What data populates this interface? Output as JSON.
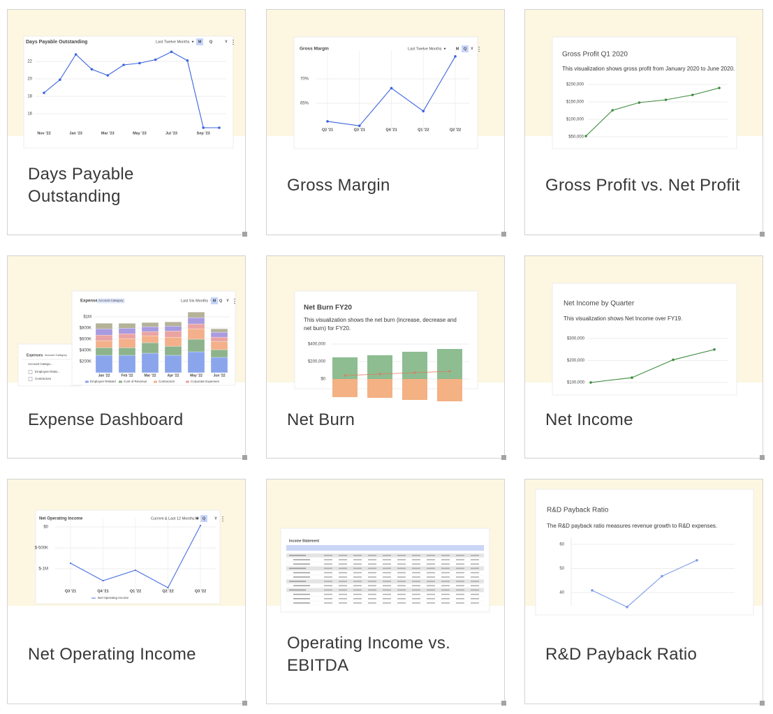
{
  "cards": [
    {
      "title": "Days Payable Outstanding",
      "thumbnail": {
        "chart_data": {
          "type": "line",
          "title": "Days Payable Outstanding",
          "range_label": "Last Twelve Months",
          "periods": [
            "M",
            "Q",
            "Y"
          ],
          "selected_period": "M",
          "categories": [
            "Nov '22",
            null,
            "Jan '23",
            null,
            "Mar '23",
            null,
            "May '23",
            null,
            "Jul '23",
            null,
            "Sep '23",
            null
          ],
          "values": [
            18.4,
            19.9,
            22.8,
            21.1,
            20.4,
            21.6,
            21.8,
            22.2,
            23.1,
            22.1,
            14.4,
            14.4
          ],
          "color": "#3b63e0",
          "ylim": [
            14,
            24
          ],
          "yticks": [
            16,
            18,
            20,
            22
          ],
          "grid": true
        }
      }
    },
    {
      "title": "Gross Margin",
      "thumbnail": {
        "chart_data": {
          "type": "line",
          "title": "Gross Margin",
          "range_label": "Last Twelve Months",
          "periods": [
            "M",
            "Q",
            "Y"
          ],
          "selected_period": "Q",
          "categories": [
            "Q2 '21",
            "Q3 '21",
            "Q4 '21",
            "Q1 '22",
            "Q2 '22"
          ],
          "values": [
            61.3,
            60.4,
            68.1,
            63.4,
            74.6
          ],
          "color": "#3b63e0",
          "ylim": [
            60,
            75
          ],
          "yticks": [
            {
              "value": 65,
              "label": "65%"
            },
            {
              "value": 70,
              "label": "70%"
            }
          ],
          "grid": true
        }
      }
    },
    {
      "title": "Gross Profit vs. Net Profit",
      "thumbnail": {
        "chart_data": {
          "type": "line",
          "title": "Gross Profit Q1 2020",
          "subtitle": "This visualization shows gross profit from January 2020 to June 2020.",
          "values": [
            52000,
            126000,
            148000,
            156000,
            170000,
            190000
          ],
          "color": "#3d8b3d",
          "ylim": [
            50000,
            200000
          ],
          "yticks": [
            {
              "value": 50000,
              "label": "$50,000"
            },
            {
              "value": 100000,
              "label": "$100,000"
            },
            {
              "value": 150000,
              "label": "$150,000"
            },
            {
              "value": 200000,
              "label": "$200,000"
            }
          ],
          "grid": true
        }
      }
    },
    {
      "title": "Expense Dashboard",
      "thumbnail": {
        "side_table": {
          "title": "Expenses",
          "filter": "Account Category",
          "header": "Account Catego...",
          "rows": [
            "Employee Relat...",
            "Contractors"
          ]
        },
        "chart_data": {
          "type": "stacked_bar",
          "title": "Expenses",
          "filter": "Account Category",
          "range_label": "Last Six Months",
          "periods": [
            "M",
            "Q",
            "Y"
          ],
          "selected_period": "M",
          "categories": [
            "Jan '22",
            "Feb '22",
            "Mar '22",
            "Apr '22",
            "May '22",
            "Jun '22"
          ],
          "series": [
            {
              "name": "Employee Related",
              "color": "#8aa5ec",
              "values": [
                312000,
                312000,
                350000,
                312000,
                375000,
                275000
              ]
            },
            {
              "name": "Cost of Revenue",
              "color": "#8db38c",
              "values": [
                137000,
                137000,
                187000,
                162000,
                225000,
                137000
              ]
            },
            {
              "name": "Contractors",
              "color": "#f4b08a",
              "values": [
                125000,
                162000,
                125000,
                162000,
                187000,
                150000
              ]
            },
            {
              "name": "Corporate Expenses",
              "color": "#eaa3a3",
              "values": [
                100000,
                87000,
                75000,
                112000,
                87000,
                75000
              ]
            },
            {
              "color": "#a89be0",
              "values": [
                112000,
                100000,
                87000,
                87000,
                112000,
                87000
              ]
            },
            {
              "color": "#b5b29a",
              "values": [
                100000,
                87000,
                75000,
                75000,
                100000,
                62000
              ]
            }
          ],
          "ylim": [
            0,
            1000000
          ],
          "yticks": [
            {
              "value": 200000,
              "label": "$200K"
            },
            {
              "value": 400000,
              "label": "$400K"
            },
            {
              "value": 600000,
              "label": "$600K"
            },
            {
              "value": 800000,
              "label": "$800K"
            },
            {
              "value": 1000000,
              "label": "$1M"
            }
          ],
          "grid": true
        }
      }
    },
    {
      "title": "Net Burn",
      "thumbnail": {
        "chart_data": {
          "type": "bar",
          "title": "Net Burn FY20",
          "subtitle": "This visualization shows the net burn (increase, decrease and net burn) for FY20.",
          "series": [
            {
              "color": "#8dbd91",
              "values": [
                248000,
                272000,
                312000,
                344000
              ]
            },
            {
              "color": "#f3b184",
              "values": [
                -208000,
                -216000,
                -240000,
                -256000
              ]
            },
            {
              "type": "line",
              "color": "#e07b5b",
              "values": [
                40000,
                56000,
                72000,
                88000
              ]
            }
          ],
          "ylim": [
            -300000,
            400000
          ],
          "yticks": [
            {
              "value": 0,
              "label": "$0"
            },
            {
              "value": 200000,
              "label": "$200,000"
            },
            {
              "value": 400000,
              "label": "$400,000"
            }
          ],
          "grid": true
        }
      }
    },
    {
      "title": "Net Income",
      "thumbnail": {
        "chart_data": {
          "type": "line",
          "title": "Net Income by Quarter",
          "subtitle": "This visualization shows Net Income over FY19.",
          "values": [
            100000,
            122000,
            203000,
            250000
          ],
          "color": "#3d8b3d",
          "ylim": [
            100000,
            300000
          ],
          "yticks": [
            {
              "value": 100000,
              "label": "$100,000"
            },
            {
              "value": 200000,
              "label": "$200,000"
            },
            {
              "value": 300000,
              "label": "$300,000"
            }
          ],
          "grid": true
        }
      }
    },
    {
      "title": "Net Operating Income",
      "thumbnail": {
        "chart_data": {
          "type": "line",
          "title": "Net Operating Income",
          "range_label": "Current & Last 12 Months",
          "periods": [
            "M",
            "Q",
            "Y"
          ],
          "selected_period": "Q",
          "categories": [
            "Q3 '21",
            "Q4 '21",
            "Q1 '22",
            "Q2 '22",
            "Q3 '22"
          ],
          "series": [
            {
              "name": "Net Operating Income",
              "color": "#4a6ee0",
              "values": [
                -867000,
                -1283000,
                -1033000,
                -1450000,
                33000
              ]
            }
          ],
          "ylim": [
            -1500000,
            100000
          ],
          "yticks": [
            {
              "value": -1000000,
              "label": "$-1M"
            },
            {
              "value": -500000,
              "label": "$-500K"
            },
            {
              "value": 0,
              "label": "$0"
            }
          ],
          "grid": true
        }
      }
    },
    {
      "title": "Operating Income vs. EBITDA",
      "thumbnail": {
        "table": {
          "title": "Income Statement"
        }
      }
    },
    {
      "title": "R&D Payback Ratio",
      "thumbnail": {
        "chart_data": {
          "type": "line",
          "title": "R&D Payback Ratio",
          "subtitle": "The R&D payback ratio measures revenue growth to R&D expenses.",
          "values": [
            40.9,
            34,
            46.8,
            53.4
          ],
          "color": "#7b9be8",
          "ylim": [
            30,
            60
          ],
          "yticks": [
            40,
            50,
            60
          ],
          "grid": true
        }
      }
    }
  ]
}
